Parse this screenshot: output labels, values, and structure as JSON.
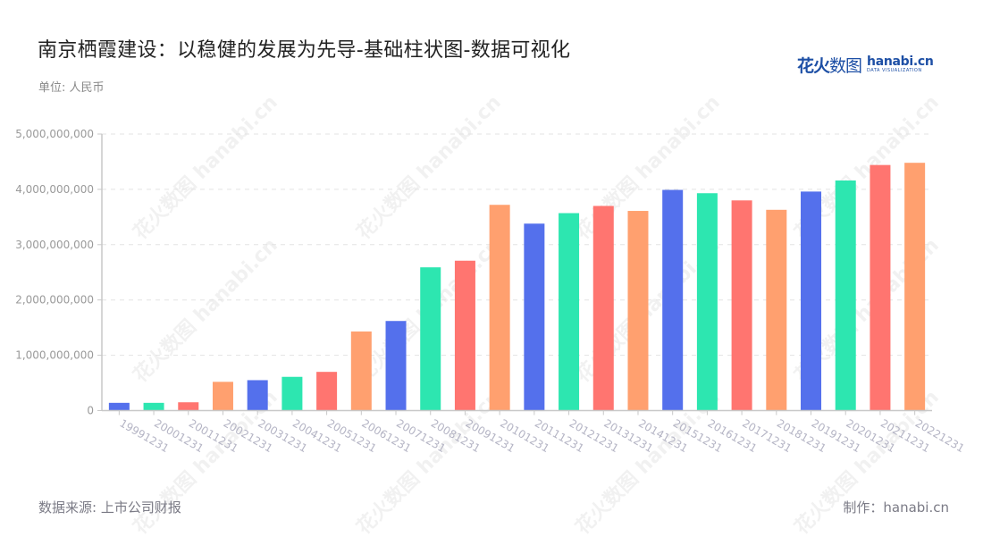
{
  "header": {
    "title": "南京栖霞建设：以稳健的发展为先导-基础柱状图-数据可视化",
    "unit": "单位: 人民币"
  },
  "logo": {
    "cn_bold": "花火",
    "cn_thin": "数图",
    "en_main": "hanabi.cn",
    "en_sub": "DATA VISUALIZATION"
  },
  "footer": {
    "source": "数据来源: 上市公司财报",
    "credit": "制作：hanabi.cn"
  },
  "watermark": "花火数图 hanabi.cn",
  "colors": {
    "palette": [
      "#5470ec",
      "#2de6b0",
      "#ff7570",
      "#ffa06f"
    ],
    "grid": "#e3e3e3",
    "axis": "#c8c8c8",
    "tick_label": "#9a9a9a",
    "x_label": "#b4b4c4"
  },
  "chart_data": {
    "type": "bar",
    "title": "南京栖霞建设：以稳健的发展为先导-基础柱状图-数据可视化",
    "xlabel": "",
    "ylabel": "单位: 人民币",
    "ylim": [
      0,
      5000000000
    ],
    "yticks": [
      0,
      1000000000,
      2000000000,
      3000000000,
      4000000000,
      5000000000
    ],
    "ytick_labels": [
      "0",
      "1,000,000,000",
      "2,000,000,000",
      "3,000,000,000",
      "4,000,000,000",
      "5,000,000,000"
    ],
    "grid": true,
    "legend": "none",
    "categories": [
      "19991231",
      "20001231",
      "20011231",
      "20021231",
      "20031231",
      "20041231",
      "20051231",
      "20061231",
      "20071231",
      "20081231",
      "20091231",
      "20101231",
      "20111231",
      "20121231",
      "20131231",
      "20141231",
      "20151231",
      "20161231",
      "20171231",
      "20181231",
      "20191231",
      "20201231",
      "20211231",
      "20221231"
    ],
    "values": [
      140000000,
      140000000,
      150000000,
      520000000,
      550000000,
      610000000,
      700000000,
      1430000000,
      1620000000,
      2590000000,
      2710000000,
      3720000000,
      3380000000,
      3570000000,
      3700000000,
      3610000000,
      3990000000,
      3930000000,
      3800000000,
      3630000000,
      3960000000,
      4160000000,
      4440000000,
      4480000000
    ]
  }
}
